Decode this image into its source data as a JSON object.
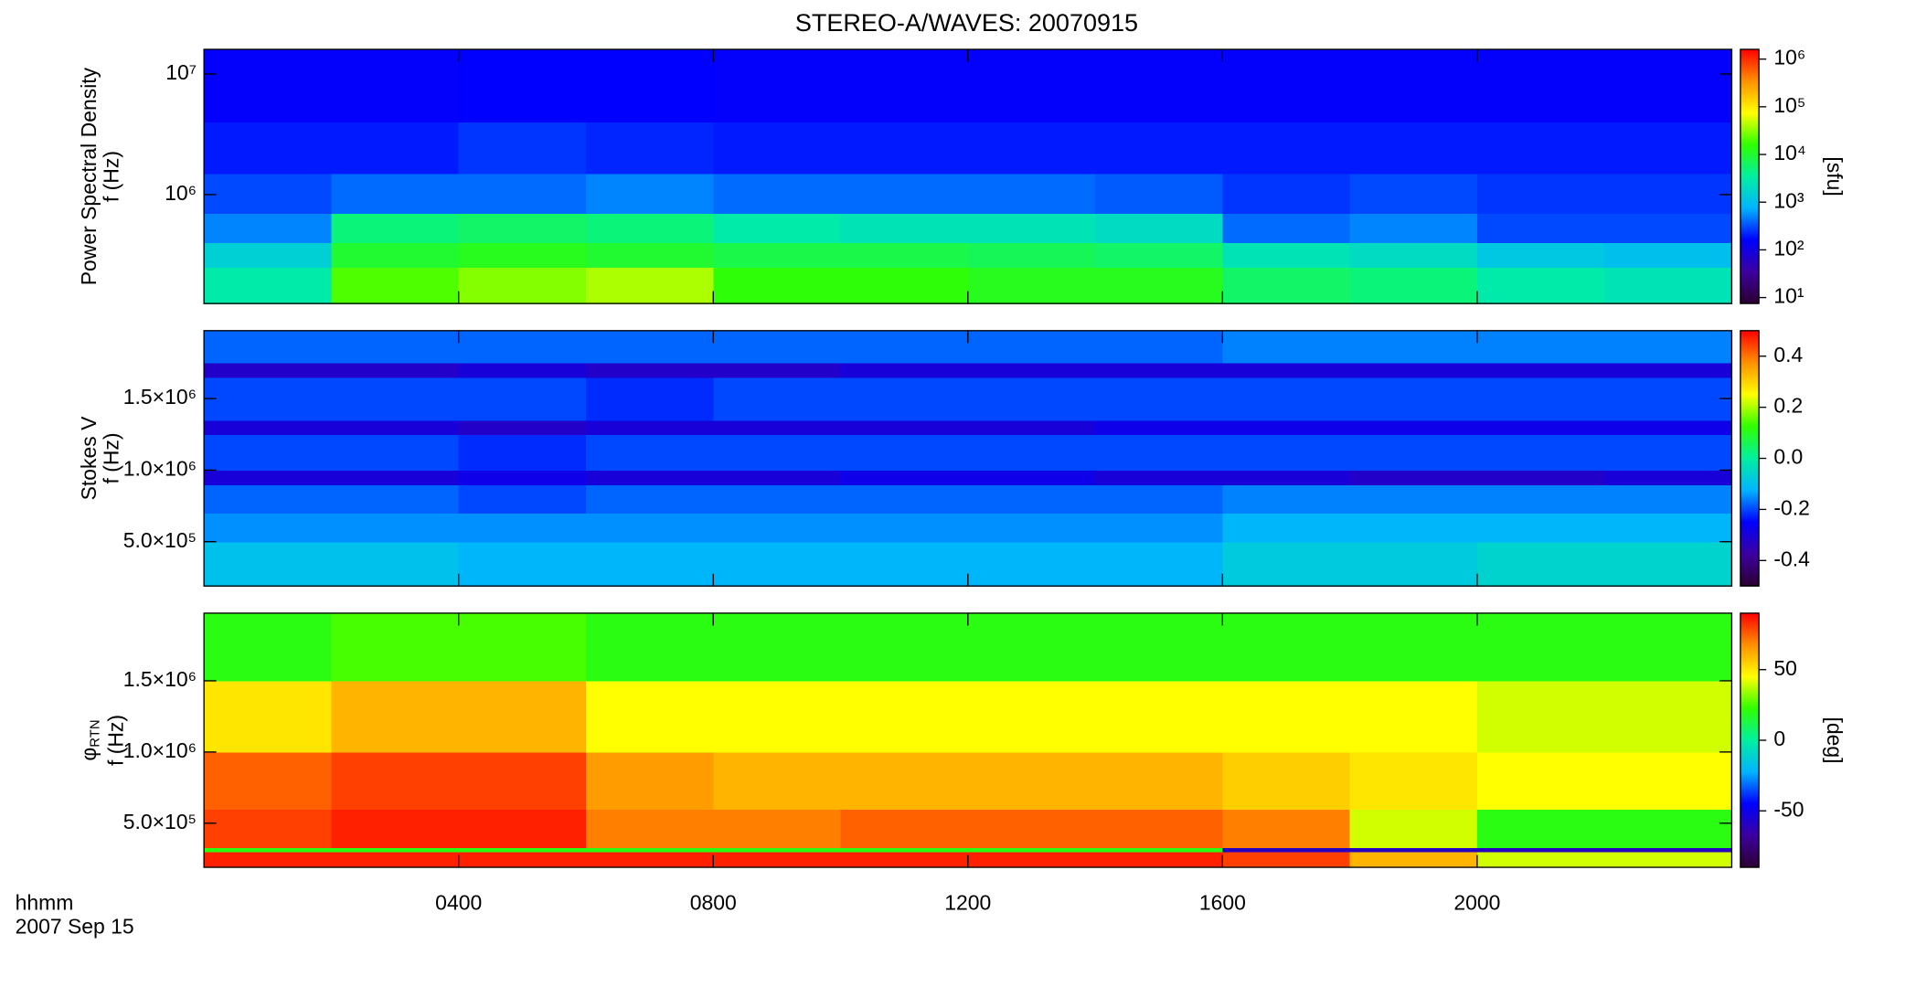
{
  "title": "STEREO-A/WAVES: 20070915",
  "x_label": "hhmm",
  "date_label": "2007 Sep 15",
  "xlim": [
    0,
    24
  ],
  "xticks": [
    {
      "value": 4,
      "label": "0400"
    },
    {
      "value": 8,
      "label": "0800"
    },
    {
      "value": 12,
      "label": "1200"
    },
    {
      "value": 16,
      "label": "1600"
    },
    {
      "value": 20,
      "label": "2000"
    }
  ],
  "colormap": [
    "#2a0030",
    "#3c00a0",
    "#0000ff",
    "#00b4ff",
    "#00f0a0",
    "#30ff00",
    "#ffff00",
    "#ff9000",
    "#ff0000"
  ],
  "chart_data": [
    {
      "type": "heatmap",
      "ylabel": [
        "Power Spectral Density",
        "f (Hz)"
      ],
      "ylog": true,
      "ylim": [
        125000,
        16000000
      ],
      "yticks": [
        {
          "value": 1000000,
          "label": "10⁶"
        },
        {
          "value": 10000000,
          "label": "10⁷"
        }
      ],
      "x_edges": [
        0,
        2,
        4,
        6,
        8,
        10,
        12,
        14,
        16,
        18,
        20,
        22,
        24
      ],
      "y_edges": [
        125000,
        250000,
        400000,
        700000,
        1500000,
        4000000,
        16000000
      ],
      "z": [
        [
          3000,
          20000,
          30000,
          40000,
          15000,
          15000,
          12000,
          12000,
          6000,
          5000,
          3000,
          2500
        ],
        [
          1500,
          10000,
          12000,
          10000,
          8000,
          8000,
          7000,
          6000,
          2500,
          2000,
          1200,
          1000
        ],
        [
          500,
          5000,
          6000,
          5000,
          3000,
          2500,
          2500,
          2000,
          400,
          500,
          300,
          300
        ],
        [
          300,
          400,
          400,
          500,
          400,
          400,
          400,
          350,
          250,
          300,
          250,
          250
        ],
        [
          200,
          200,
          250,
          220,
          200,
          200,
          200,
          200,
          200,
          200,
          200,
          200
        ],
        [
          150,
          150,
          160,
          160,
          150,
          150,
          150,
          150,
          150,
          150,
          150,
          150
        ]
      ],
      "clog": true,
      "clim": [
        7.5,
        1600000
      ],
      "cticks": [
        {
          "value": 10,
          "label": "10¹"
        },
        {
          "value": 100,
          "label": "10²"
        },
        {
          "value": 1000,
          "label": "10³"
        },
        {
          "value": 10000,
          "label": "10⁴"
        },
        {
          "value": 100000,
          "label": "10⁵"
        },
        {
          "value": 1000000,
          "label": "10⁶"
        }
      ],
      "cbar_label": "[sfu]"
    },
    {
      "type": "heatmap",
      "ylabel": [
        "Stokes V",
        "f (Hz)"
      ],
      "ylog": false,
      "ylim": [
        190000,
        1975000
      ],
      "yticks": [
        {
          "value": 500000,
          "label": "5.0×10⁵"
        },
        {
          "value": 1000000,
          "label": "1.0×10⁶"
        },
        {
          "value": 1500000,
          "label": "1.5×10⁶"
        }
      ],
      "x_edges": [
        0,
        2,
        4,
        6,
        8,
        10,
        12,
        14,
        16,
        18,
        20,
        22,
        24
      ],
      "y_edges": [
        190000,
        500000,
        700000,
        900000,
        1000000,
        1250000,
        1350000,
        1650000,
        1750000,
        1975000
      ],
      "z": [
        [
          -0.1,
          -0.1,
          -0.12,
          -0.12,
          -0.12,
          -0.12,
          -0.12,
          -0.12,
          -0.08,
          -0.08,
          -0.06,
          -0.06
        ],
        [
          -0.15,
          -0.15,
          -0.15,
          -0.15,
          -0.15,
          -0.15,
          -0.15,
          -0.15,
          -0.12,
          -0.12,
          -0.12,
          -0.12
        ],
        [
          -0.18,
          -0.18,
          -0.2,
          -0.18,
          -0.18,
          -0.18,
          -0.18,
          -0.18,
          -0.16,
          -0.16,
          -0.16,
          -0.16
        ],
        [
          -0.3,
          -0.3,
          -0.28,
          -0.3,
          -0.3,
          -0.28,
          -0.28,
          -0.3,
          -0.3,
          -0.32,
          -0.32,
          -0.3
        ],
        [
          -0.2,
          -0.2,
          -0.22,
          -0.2,
          -0.2,
          -0.2,
          -0.2,
          -0.2,
          -0.2,
          -0.2,
          -0.2,
          -0.2
        ],
        [
          -0.3,
          -0.3,
          -0.32,
          -0.3,
          -0.3,
          -0.3,
          -0.3,
          -0.28,
          -0.28,
          -0.28,
          -0.28,
          -0.28
        ],
        [
          -0.2,
          -0.2,
          -0.2,
          -0.22,
          -0.2,
          -0.2,
          -0.2,
          -0.2,
          -0.2,
          -0.2,
          -0.2,
          -0.2
        ],
        [
          -0.32,
          -0.32,
          -0.3,
          -0.32,
          -0.32,
          -0.3,
          -0.3,
          -0.3,
          -0.3,
          -0.3,
          -0.3,
          -0.3
        ],
        [
          -0.18,
          -0.18,
          -0.18,
          -0.18,
          -0.18,
          -0.18,
          -0.18,
          -0.18,
          -0.16,
          -0.16,
          -0.16,
          -0.16
        ]
      ],
      "clog": false,
      "clim": [
        -0.5,
        0.5
      ],
      "cticks": [
        -0.4,
        -0.2,
        {
          "value": 0,
          "label": "0.0"
        },
        0.2,
        0.4
      ]
    },
    {
      "type": "heatmap",
      "ylabel": [
        "φ",
        "f (Hz)"
      ],
      "ylabel_subscript": "RTN",
      "ylog": false,
      "ylim": [
        190000,
        1975000
      ],
      "yticks": [
        {
          "value": 500000,
          "label": "5.0×10⁵"
        },
        {
          "value": 1000000,
          "label": "1.0×10⁶"
        },
        {
          "value": 1500000,
          "label": "1.5×10⁶"
        }
      ],
      "x_edges": [
        0,
        2,
        4,
        6,
        8,
        10,
        12,
        14,
        16,
        18,
        20,
        22,
        24
      ],
      "y_edges": [
        190000,
        300000,
        330000,
        600000,
        1000000,
        1500000,
        1975000
      ],
      "z": [
        [
          85,
          85,
          85,
          85,
          85,
          85,
          85,
          85,
          80,
          60,
          40,
          40
        ],
        [
          20,
          20,
          20,
          20,
          20,
          20,
          20,
          20,
          -60,
          -60,
          -60,
          -60
        ],
        [
          80,
          85,
          85,
          70,
          70,
          75,
          75,
          75,
          70,
          40,
          20,
          20
        ],
        [
          75,
          80,
          80,
          65,
          60,
          60,
          60,
          60,
          55,
          50,
          45,
          45
        ],
        [
          50,
          60,
          60,
          45,
          45,
          45,
          45,
          45,
          45,
          45,
          40,
          40
        ],
        [
          20,
          25,
          25,
          20,
          20,
          20,
          20,
          20,
          20,
          20,
          20,
          20
        ]
      ],
      "clog": false,
      "clim": [
        -90,
        90
      ],
      "cticks": [
        -50,
        0,
        50
      ],
      "cbar_label": "[deg]"
    }
  ]
}
